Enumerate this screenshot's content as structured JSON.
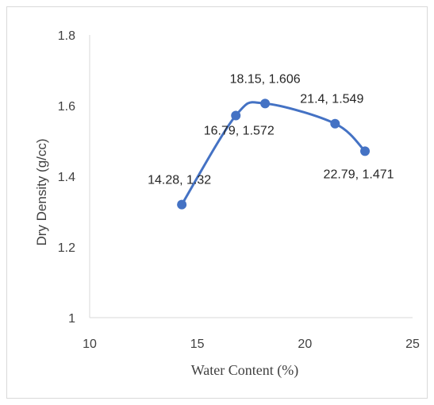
{
  "chart_data": {
    "type": "scatter",
    "series": [
      {
        "x": [
          14.28,
          16.79,
          18.15,
          21.4,
          22.79
        ],
        "y": [
          1.32,
          1.572,
          1.606,
          1.549,
          1.471
        ],
        "color": "#4472C4",
        "smooth": true,
        "data_labels": [
          "14.28, 1.32",
          "16.79, 1.572",
          "18.15, 1.606",
          "21.4, 1.549",
          "22.79, 1.471"
        ]
      }
    ],
    "xlabel": "Water Content (%)",
    "ylabel": "Dry Density (g/cc)",
    "xlim": [
      10,
      25
    ],
    "ylim": [
      1,
      1.8
    ],
    "xticks": [
      "10",
      "15",
      "20",
      "25"
    ],
    "yticks": [
      "1",
      "1.2",
      "1.4",
      "1.6",
      "1.8"
    ],
    "grid": false,
    "axis_color": "#d9d9d9"
  }
}
